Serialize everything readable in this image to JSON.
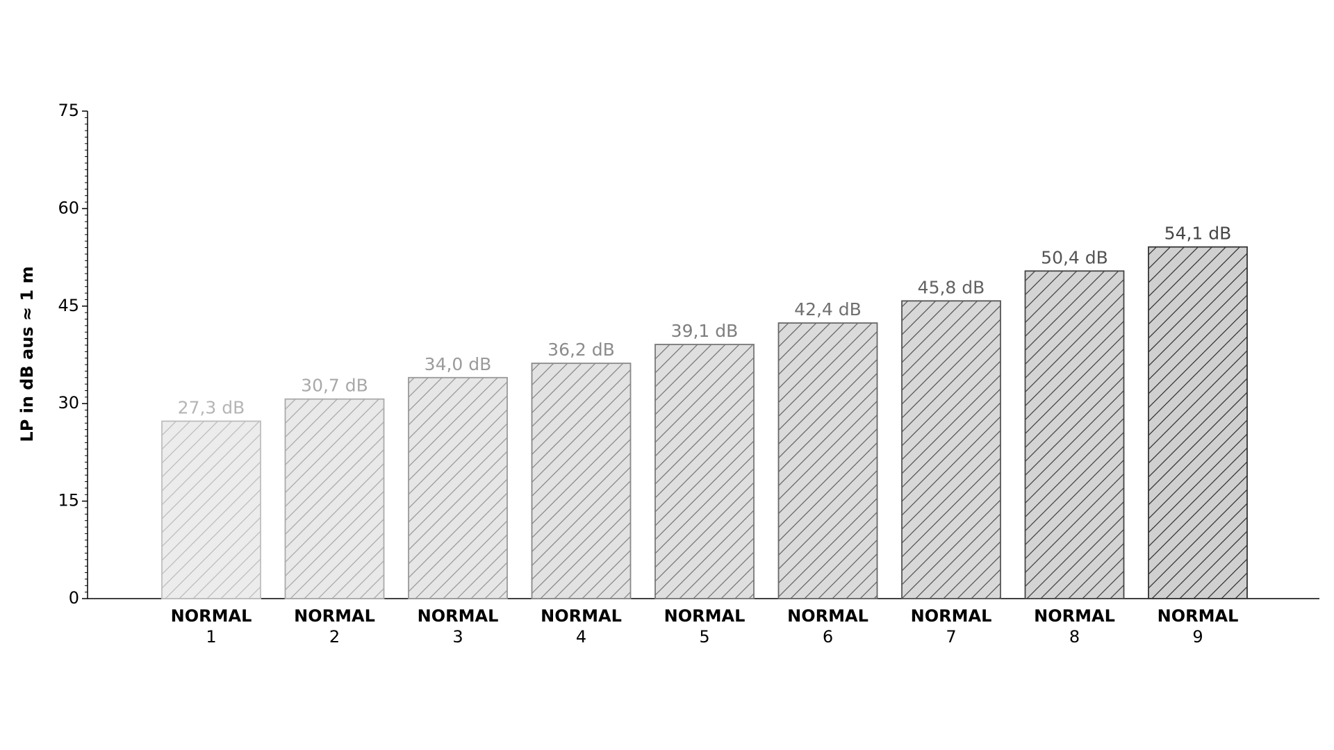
{
  "chart_data": {
    "type": "bar",
    "y_label": "LP in dB aus ≈ 1 m",
    "categories": [
      "NORMAL\n1",
      "NORMAL\n2",
      "NORMAL\n3",
      "NORMAL\n4",
      "NORMAL\n5",
      "NORMAL\n6",
      "NORMAL\n7",
      "NORMAL\n8",
      "NORMAL\n9"
    ],
    "values": [
      27.3,
      30.7,
      34.0,
      36.2,
      39.1,
      42.4,
      45.8,
      50.4,
      54.1
    ],
    "value_labels": [
      "27,3 dB",
      "30,7 dB",
      "34,0 dB",
      "36,2 dB",
      "39,1 dB",
      "42,4 dB",
      "45,8 dB",
      "50,4 dB",
      "54,1 dB"
    ],
    "colors": [
      "#ececec",
      "#e9e9e9",
      "#e6e6e6",
      "#e2e2e2",
      "#dfdfdf",
      "#dbdbdb",
      "#d8d8d8",
      "#d4d4d4",
      "#d0d0d0"
    ],
    "edge_colors": [
      "#bdbdbd",
      "#aaaaaa",
      "#999999",
      "#888888",
      "#777777",
      "#666666",
      "#555555",
      "#444444",
      "#333333"
    ],
    "label_colors": [
      "#b5b5b5",
      "#a8a8a8",
      "#9a9a9a",
      "#8c8c8c",
      "#7e7e7e",
      "#707070",
      "#626262",
      "#545454",
      "#464646"
    ],
    "hatch": "/",
    "ylim": [
      0,
      75
    ],
    "yticks": [
      0,
      15,
      30,
      45,
      60,
      75
    ],
    "y_minor_step": 1,
    "grid": false
  }
}
